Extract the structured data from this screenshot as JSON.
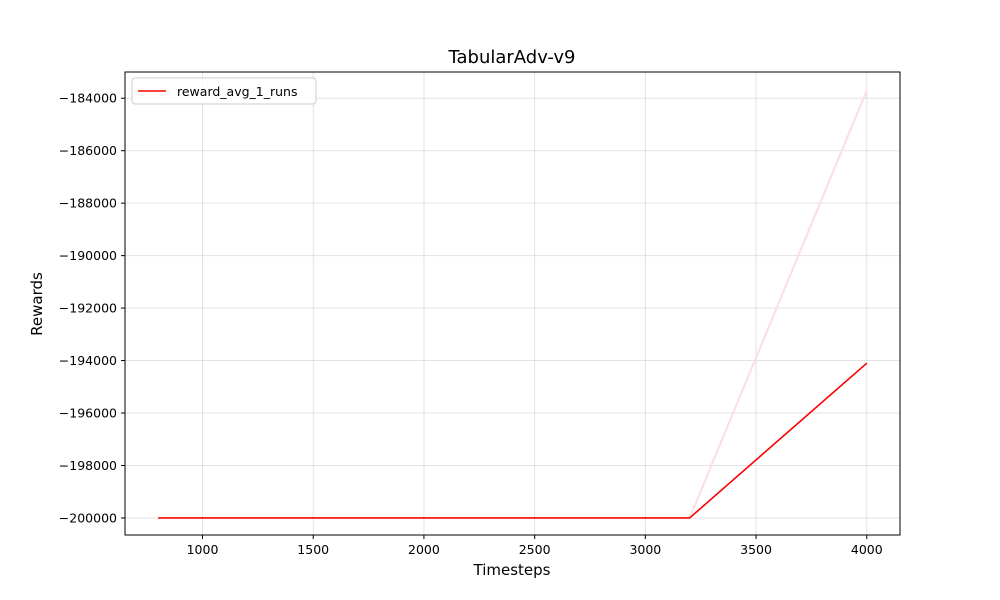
{
  "chart_data": {
    "type": "line",
    "title": "TabularAdv-v9",
    "xlabel": "Timesteps",
    "ylabel": "Rewards",
    "xlim": [
      650,
      4150
    ],
    "ylim": [
      -200650,
      -183000
    ],
    "xticks": [
      1000,
      1500,
      2000,
      2500,
      3000,
      3500,
      4000
    ],
    "yticks": [
      -200000,
      -198000,
      -196000,
      -194000,
      -192000,
      -190000,
      -188000,
      -186000,
      -184000
    ],
    "xtick_labels": [
      "1000",
      "1500",
      "2000",
      "2500",
      "3000",
      "3500",
      "4000"
    ],
    "ytick_labels": [
      "−200000",
      "−198000",
      "−196000",
      "−194000",
      "−192000",
      "−190000",
      "−188000",
      "−186000",
      "−184000"
    ],
    "grid": true,
    "legend_position": "top-left",
    "series": [
      {
        "name": "reward_avg_1_runs",
        "color": "#ff0000",
        "x": [
          800,
          3200,
          4000
        ],
        "y": [
          -200000,
          -200000,
          -194100
        ]
      },
      {
        "color": "#ffe0e0",
        "x": [
          3200,
          4000
        ],
        "y": [
          -200000,
          -183700
        ]
      }
    ]
  }
}
